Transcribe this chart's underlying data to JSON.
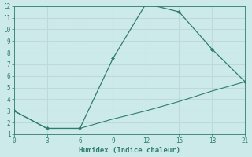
{
  "xlabel": "Humidex (Indice chaleur)",
  "line1_x": [
    0,
    3,
    6,
    9,
    12,
    15,
    18,
    21
  ],
  "line1_y": [
    3,
    1.5,
    1.5,
    7.5,
    12.2,
    11.5,
    8.3,
    5.5
  ],
  "line2_x": [
    0,
    3,
    6,
    9,
    12,
    15,
    18,
    21
  ],
  "line2_y": [
    3,
    1.5,
    1.5,
    2.3,
    3.0,
    3.8,
    4.7,
    5.5
  ],
  "line_color": "#2e7d6e",
  "bg_color": "#cdeaea",
  "grid_color": "#c0d8d8",
  "xlim": [
    0,
    21
  ],
  "ylim": [
    1,
    12
  ],
  "xticks": [
    0,
    3,
    6,
    9,
    12,
    15,
    18,
    21
  ],
  "yticks": [
    1,
    2,
    3,
    4,
    5,
    6,
    7,
    8,
    9,
    10,
    11,
    12
  ]
}
